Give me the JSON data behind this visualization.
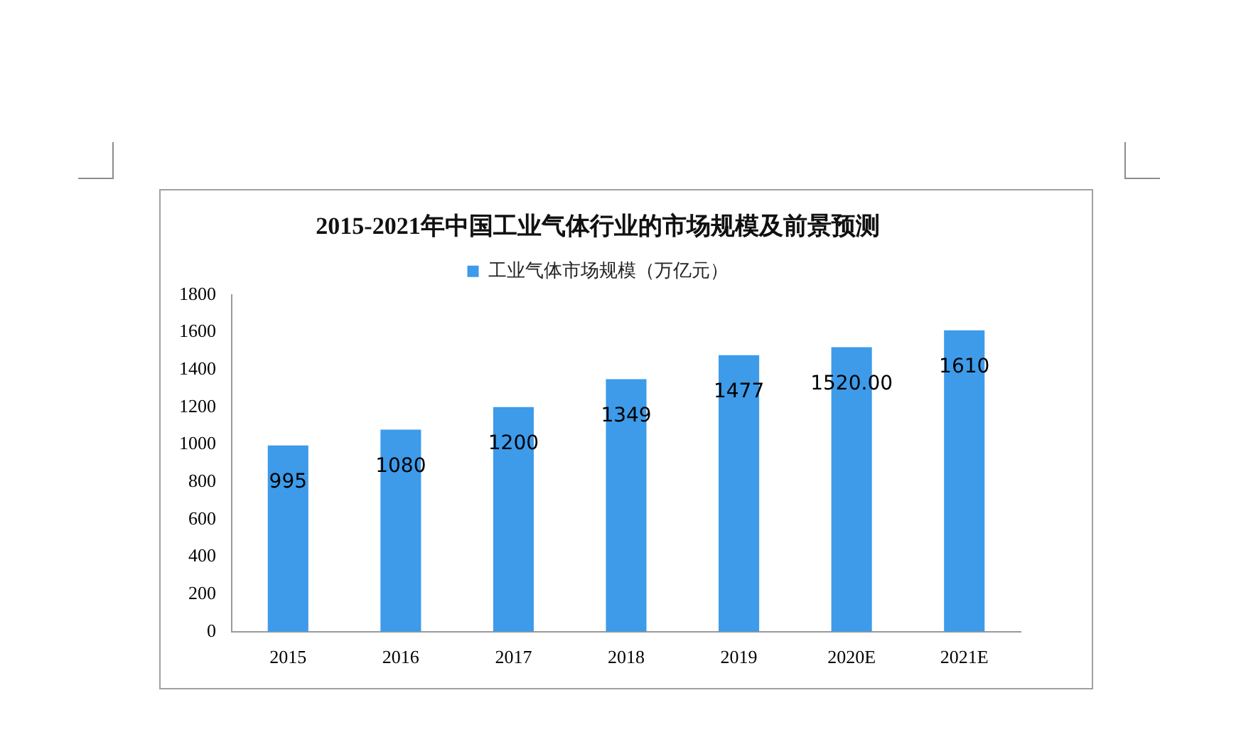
{
  "chart_data": {
    "type": "bar",
    "title": "2015-2021年中国工业气体行业的市场规模及前景预测",
    "categories": [
      "2015",
      "2016",
      "2017",
      "2018",
      "2019",
      "2020E",
      "2021E"
    ],
    "series": [
      {
        "name": "工业气体市场规模（万亿元）",
        "color": "#3d9be9",
        "values": [
          995,
          1080,
          1200,
          1349,
          1477,
          1520,
          1610
        ],
        "value_labels": [
          "995",
          "1080",
          "1200",
          "1349",
          "1477",
          "1520.00",
          "1610"
        ]
      }
    ],
    "ylim": [
      0,
      1800
    ],
    "yticks": [
      0,
      200,
      400,
      600,
      800,
      1000,
      1200,
      1400,
      1600,
      1800
    ],
    "grid": false,
    "legend": "top"
  }
}
